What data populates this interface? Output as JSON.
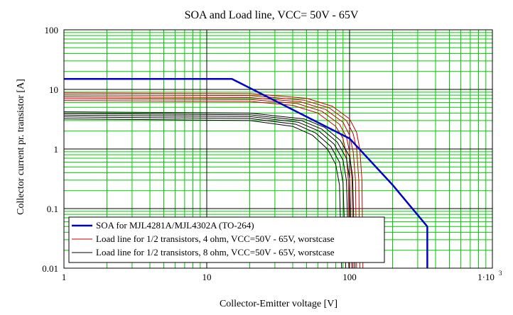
{
  "chart_data": {
    "type": "line",
    "title": "SOA and Load line, VCC= 50V - 65V",
    "xlabel": "Collector-Emitter voltage [V]",
    "ylabel": "Collector current pr. transistor [A]",
    "x_scale": "log",
    "y_scale": "log",
    "xlim": [
      1,
      1000
    ],
    "ylim": [
      0.01,
      100
    ],
    "x_ticks": [
      {
        "value": 1,
        "label": "1"
      },
      {
        "value": 10,
        "label": "10"
      },
      {
        "value": 100,
        "label": "100"
      }
    ],
    "x_tick_last": {
      "value": 1000,
      "base": "1·10",
      "exp": "3"
    },
    "y_ticks": [
      {
        "value": 100,
        "label": "100"
      },
      {
        "value": 10,
        "label": "10"
      },
      {
        "value": 1,
        "label": "1"
      },
      {
        "value": 0.1,
        "label": "0.1"
      },
      {
        "value": 0.01,
        "label": "0.01"
      }
    ],
    "grid": true,
    "legend_position": "bottom-left",
    "legend": [
      {
        "label": "SOA for MJL4281A/MJL4302A (TO-264)",
        "color": "#0000cc"
      },
      {
        "label": "Load line for 1/2 transistors, 4 ohm, VCC=50V - 65V, worstcase",
        "color": "#cc0000"
      },
      {
        "label": "Load line for 1/2 transistors, 8 ohm, VCC=50V - 65V, worstcase",
        "color": "#000000"
      }
    ],
    "colors": {
      "major_grid": "#000000",
      "minor_grid": "#00cc00",
      "soa": "#0000cc",
      "load_4ohm": "#cc0000",
      "load_8ohm": "#000000"
    },
    "series": [
      {
        "name": "SOA for MJL4281A/MJL4302A (TO-264)",
        "color": "#0000cc",
        "points": [
          [
            1,
            15
          ],
          [
            15,
            15
          ],
          [
            100,
            1.5
          ],
          [
            200,
            0.25
          ],
          [
            350,
            0.05
          ],
          [
            350,
            0.01
          ]
        ]
      },
      {
        "group": "4ohm",
        "color": "#cc0000",
        "points": [
          [
            1,
            6.5
          ],
          [
            20,
            6.3
          ],
          [
            40,
            5.4
          ],
          [
            60,
            4.0
          ],
          [
            80,
            2.4
          ],
          [
            90,
            1.5
          ],
          [
            95,
            0.8
          ],
          [
            98,
            0.3
          ],
          [
            100,
            0.01
          ]
        ]
      },
      {
        "group": "4ohm",
        "color": "#cc0000",
        "points": [
          [
            1,
            7.0
          ],
          [
            20,
            6.8
          ],
          [
            43,
            5.8
          ],
          [
            64,
            4.3
          ],
          [
            85,
            2.6
          ],
          [
            95,
            1.6
          ],
          [
            100,
            0.9
          ],
          [
            104,
            0.3
          ],
          [
            106,
            0.01
          ]
        ]
      },
      {
        "group": "4ohm",
        "color": "#cc0000",
        "points": [
          [
            1,
            7.5
          ],
          [
            20,
            7.3
          ],
          [
            45,
            6.2
          ],
          [
            68,
            4.6
          ],
          [
            90,
            2.8
          ],
          [
            100,
            1.7
          ],
          [
            106,
            0.9
          ],
          [
            110,
            0.3
          ],
          [
            112,
            0.01
          ]
        ]
      },
      {
        "group": "4ohm",
        "color": "#cc0000",
        "points": [
          [
            1,
            8.1
          ],
          [
            20,
            7.9
          ],
          [
            48,
            6.6
          ],
          [
            72,
            4.9
          ],
          [
            95,
            3.0
          ],
          [
            106,
            1.8
          ],
          [
            112,
            1.0
          ],
          [
            116,
            0.3
          ],
          [
            118,
            0.01
          ]
        ]
      },
      {
        "group": "4ohm",
        "color": "#cc0000",
        "points": [
          [
            1,
            8.7
          ],
          [
            20,
            8.5
          ],
          [
            50,
            7.1
          ],
          [
            76,
            5.2
          ],
          [
            100,
            3.2
          ],
          [
            112,
            1.9
          ],
          [
            118,
            1.0
          ],
          [
            122,
            0.3
          ],
          [
            124,
            0.01
          ]
        ]
      },
      {
        "group": "8ohm",
        "color": "#000000",
        "points": [
          [
            1,
            3.2
          ],
          [
            20,
            3.0
          ],
          [
            40,
            2.4
          ],
          [
            55,
            1.7
          ],
          [
            70,
            1.0
          ],
          [
            80,
            0.55
          ],
          [
            85,
            0.25
          ],
          [
            88,
            0.01
          ]
        ]
      },
      {
        "group": "8ohm",
        "color": "#000000",
        "points": [
          [
            1,
            3.45
          ],
          [
            20,
            3.25
          ],
          [
            42,
            2.6
          ],
          [
            58,
            1.85
          ],
          [
            74,
            1.1
          ],
          [
            85,
            0.6
          ],
          [
            90,
            0.27
          ],
          [
            94,
            0.01
          ]
        ]
      },
      {
        "group": "8ohm",
        "color": "#000000",
        "points": [
          [
            1,
            3.7
          ],
          [
            20,
            3.5
          ],
          [
            44,
            2.8
          ],
          [
            61,
            2.0
          ],
          [
            78,
            1.2
          ],
          [
            90,
            0.65
          ],
          [
            95,
            0.3
          ],
          [
            99,
            0.01
          ]
        ]
      },
      {
        "group": "8ohm",
        "color": "#000000",
        "points": [
          [
            1,
            3.95
          ],
          [
            20,
            3.75
          ],
          [
            46,
            3.0
          ],
          [
            64,
            2.15
          ],
          [
            82,
            1.3
          ],
          [
            95,
            0.7
          ],
          [
            100,
            0.32
          ],
          [
            104,
            0.01
          ]
        ]
      },
      {
        "group": "8ohm",
        "color": "#000000",
        "points": [
          [
            1,
            4.2
          ],
          [
            20,
            4.0
          ],
          [
            48,
            3.2
          ],
          [
            67,
            2.3
          ],
          [
            86,
            1.4
          ],
          [
            100,
            0.75
          ],
          [
            105,
            0.35
          ],
          [
            109,
            0.01
          ]
        ]
      }
    ]
  }
}
